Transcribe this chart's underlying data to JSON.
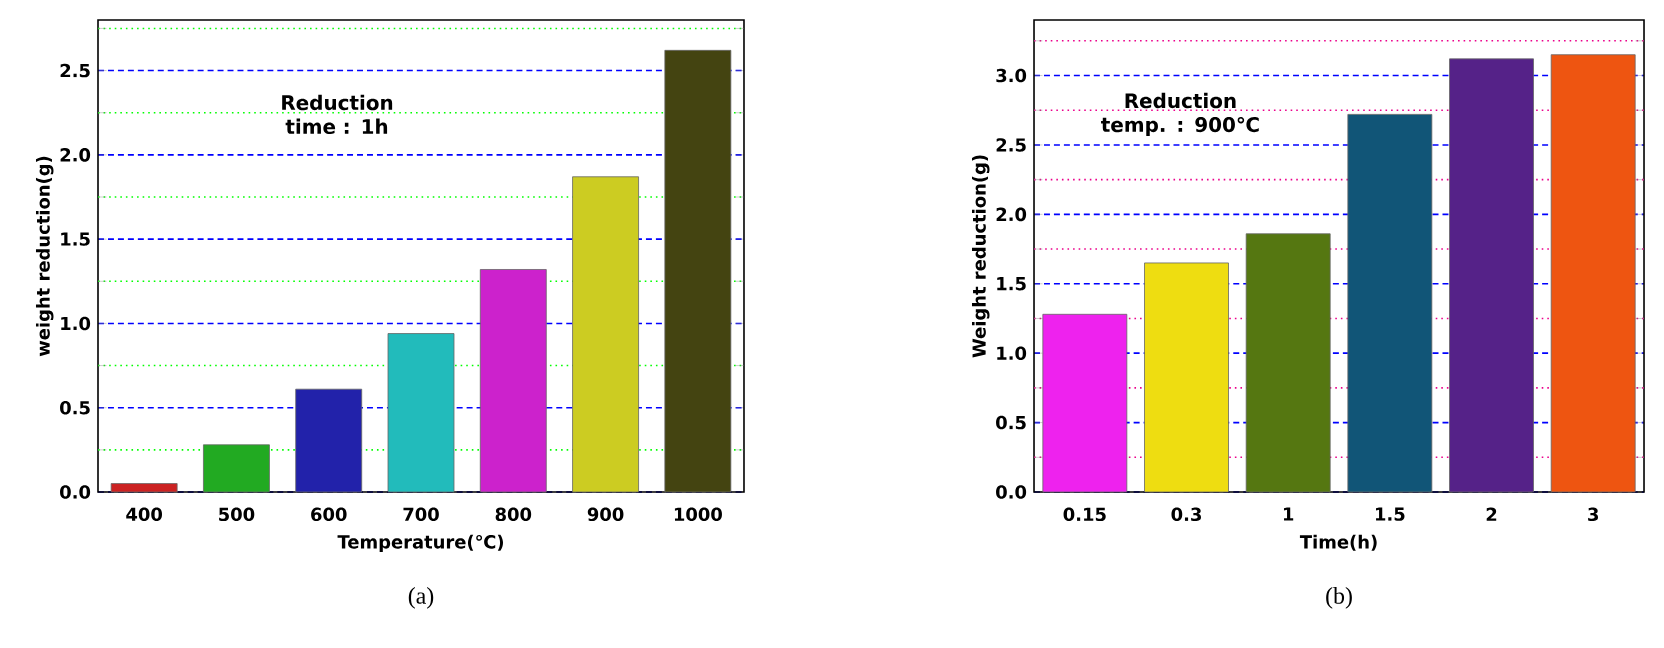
{
  "chart_data": [
    {
      "type": "bar",
      "xlabel": "Temperature(℃)",
      "ylabel": "weight reduction(g)",
      "annotations": [
        "Reduction time : 1h",
        "(a)"
      ],
      "categories": [
        "400",
        "500",
        "600",
        "700",
        "800",
        "900",
        "1000"
      ],
      "values": [
        0.05,
        0.28,
        0.61,
        0.94,
        1.32,
        1.87,
        2.62
      ],
      "colors": [
        "#cc2222",
        "#22aa22",
        "#2222aa",
        "#22bbbb",
        "#cc22cc",
        "#cccc22",
        "#444411"
      ],
      "ylim": [
        0,
        2.8
      ],
      "yticks": [
        {
          "value": 0,
          "label": "0.0"
        },
        {
          "value": 0.25,
          "label": null
        },
        0.5,
        {
          "value": 0.75,
          "label": null
        },
        {
          "value": 1,
          "label": "1.0"
        },
        {
          "value": 1.25,
          "label": null
        },
        1.5,
        {
          "value": 1.75,
          "label": null
        },
        {
          "value": 2,
          "label": "2.0"
        },
        {
          "value": 2.25,
          "label": null
        },
        2.5,
        {
          "value": 2.75,
          "label": null
        }
      ],
      "grid": true
    },
    {
      "type": "bar",
      "xlabel": "Time(h)",
      "ylabel": "Weight reduction(g)",
      "annotations": [
        "Reduction temp. : 900℃",
        "(b)"
      ],
      "categories": [
        "0.15",
        "0.3",
        "1",
        "1.5",
        "2",
        "3"
      ],
      "values": [
        1.28,
        1.65,
        1.86,
        2.72,
        3.12,
        3.15
      ],
      "colors": [
        "#ee22ee",
        "#eedd11",
        "#557711",
        "#115577",
        "#552288",
        "#ee5511"
      ],
      "ylim": [
        0,
        3.4
      ],
      "yticks": [
        {
          "value": 0,
          "label": "0.0"
        },
        {
          "value": 0.25,
          "label": null
        },
        0.5,
        {
          "value": 0.75,
          "label": null
        },
        {
          "value": 1,
          "label": "1.0"
        },
        {
          "value": 1.25,
          "label": null
        },
        1.5,
        {
          "value": 1.75,
          "label": null
        },
        {
          "value": 2,
          "label": "2.0"
        },
        {
          "value": 2.25,
          "label": null
        },
        2.5,
        {
          "value": 2.75,
          "label": null
        },
        {
          "value": 3,
          "label": "3.0"
        },
        {
          "value": 3.25,
          "label": null
        }
      ],
      "grid": true
    }
  ]
}
